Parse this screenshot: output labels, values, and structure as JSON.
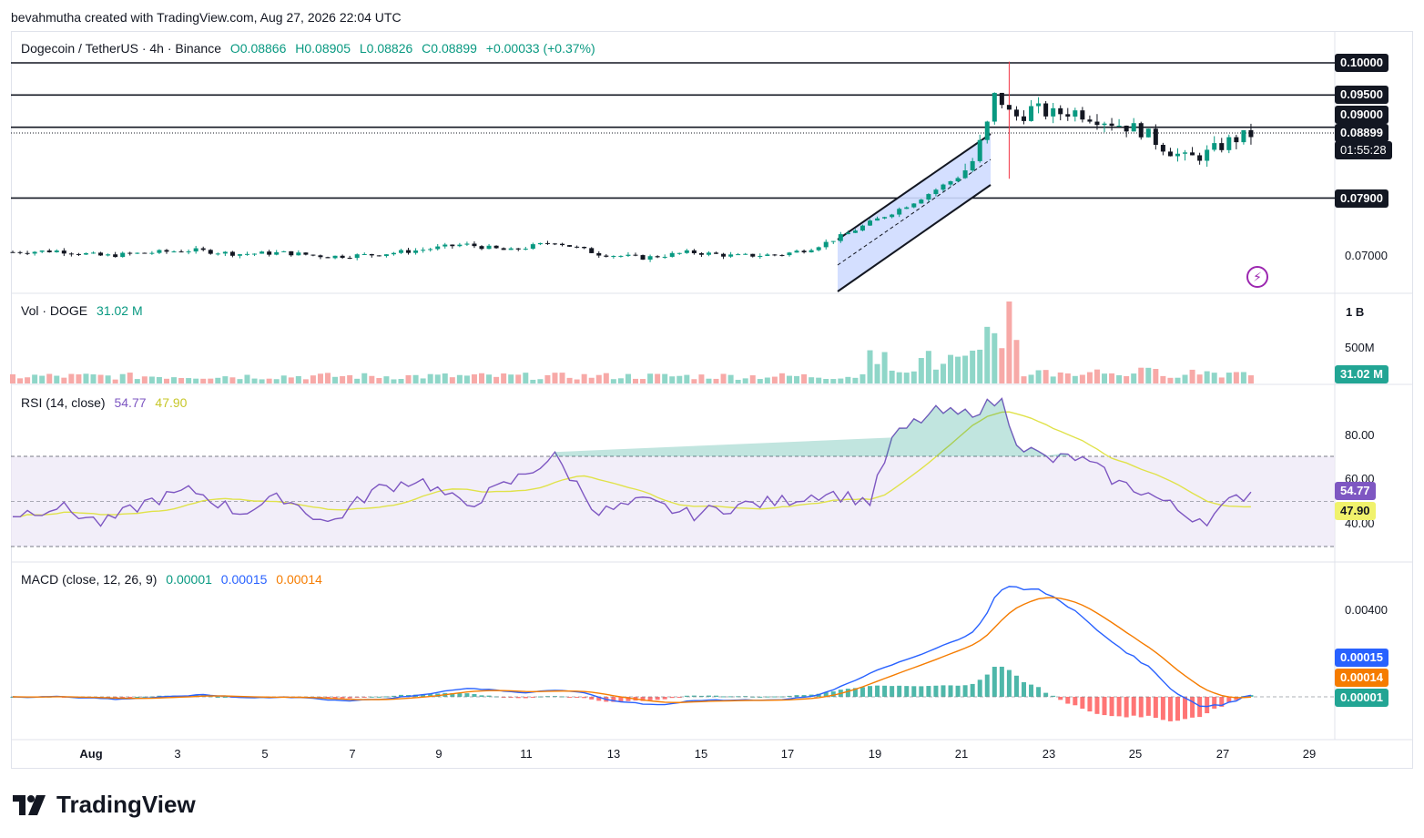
{
  "header": {
    "text": "bevahmutha created with TradingView.com, Aug 27, 2026 22:04 UTC"
  },
  "symbol": {
    "title": "Dogecoin / TetherUS · 4h · Binance",
    "open": "O0.08866",
    "high": "H0.08905",
    "low": "L0.08826",
    "close": "C0.08899",
    "change": "+0.00033 (+0.37%)"
  },
  "price_axis": {
    "levels": [
      "0.10000",
      "0.09500",
      "0.09000",
      "0.07900"
    ],
    "plain": [
      "0.07000"
    ],
    "current": "0.08899",
    "countdown": "01:55:28"
  },
  "volume": {
    "label": "Vol · DOGE",
    "value": "31.02 M",
    "axis": [
      "1 B",
      "500M"
    ],
    "tag": "31.02 M"
  },
  "rsi": {
    "label": "RSI (14, close)",
    "value": "54.77",
    "ma": "47.90",
    "axis": [
      "80.00",
      "60.00",
      "40.00"
    ],
    "tag_rsi": "54.77",
    "tag_ma": "47.90"
  },
  "macd": {
    "label": "MACD (close, 12, 26, 9)",
    "hist": "0.00001",
    "macd": "0.00015",
    "signal": "0.00014",
    "axis": [
      "0.00400"
    ],
    "tag_macd": "0.00015",
    "tag_signal": "0.00014",
    "tag_hist": "0.00001"
  },
  "x_axis": [
    "Aug",
    "3",
    "5",
    "7",
    "9",
    "11",
    "13",
    "15",
    "17",
    "19",
    "21",
    "23",
    "25",
    "27",
    "29"
  ],
  "footer": {
    "brand": "TradingView"
  },
  "colors": {
    "up": "#089981",
    "down": "#f23645",
    "rsi": "#7e57c2",
    "rsi_ma": "#e0e24a",
    "macd": "#2962ff",
    "signal": "#f57c00",
    "channel": "#cfdcff"
  },
  "chart_data": {
    "type": "candlestick",
    "title": "Dogecoin / TetherUS · 4h · Binance",
    "x_ticks": [
      "Aug",
      "3",
      "5",
      "7",
      "9",
      "11",
      "13",
      "15",
      "17",
      "19",
      "21",
      "23",
      "25",
      "27",
      "29"
    ],
    "horizontal_levels": [
      0.1,
      0.095,
      0.09,
      0.079
    ],
    "ylim": [
      0.063,
      0.104
    ],
    "price_path": [
      [
        0,
        0.0706
      ],
      [
        1,
        0.0708
      ],
      [
        2,
        0.07
      ],
      [
        3,
        0.0705
      ],
      [
        4,
        0.0709
      ],
      [
        5,
        0.0703
      ],
      [
        6,
        0.0705
      ],
      [
        7,
        0.0699
      ],
      [
        8,
        0.0702
      ],
      [
        9,
        0.0709
      ],
      [
        10,
        0.0718
      ],
      [
        11,
        0.0708
      ],
      [
        12,
        0.0722
      ],
      [
        13,
        0.0703
      ],
      [
        14,
        0.0697
      ],
      [
        15,
        0.0706
      ],
      [
        16,
        0.07
      ],
      [
        17,
        0.0702
      ],
      [
        17.6,
        0.071
      ],
      [
        18,
        0.072
      ],
      [
        18.5,
        0.0735
      ],
      [
        19,
        0.0752
      ],
      [
        19.5,
        0.0768
      ],
      [
        20,
        0.0785
      ],
      [
        20.5,
        0.0805
      ],
      [
        21,
        0.0825
      ],
      [
        21.3,
        0.085
      ],
      [
        21.6,
        0.0905
      ],
      [
        21.8,
        0.096
      ],
      [
        22,
        0.0925
      ],
      [
        22.3,
        0.0915
      ],
      [
        22.6,
        0.093
      ],
      [
        23,
        0.092
      ],
      [
        23.5,
        0.0925
      ],
      [
        24,
        0.0915
      ],
      [
        24.5,
        0.0905
      ],
      [
        25,
        0.0895
      ],
      [
        25.5,
        0.087
      ],
      [
        26,
        0.085
      ],
      [
        26.5,
        0.086
      ],
      [
        27,
        0.088
      ],
      [
        27.5,
        0.089
      ]
    ],
    "volume": {
      "axis_ticks": [
        "1 B",
        "500M"
      ],
      "last": "31.02 M"
    },
    "rsi": {
      "upper": 70,
      "middle": 50,
      "lower": 30,
      "last": 54.77,
      "ma_last": 47.9,
      "path": [
        [
          0,
          44
        ],
        [
          1,
          48
        ],
        [
          2,
          40
        ],
        [
          3,
          50
        ],
        [
          4,
          55
        ],
        [
          5,
          45
        ],
        [
          6,
          52
        ],
        [
          7,
          40
        ],
        [
          8,
          55
        ],
        [
          9,
          60
        ],
        [
          10,
          48
        ],
        [
          11,
          58
        ],
        [
          12,
          70
        ],
        [
          13,
          45
        ],
        [
          14,
          50
        ],
        [
          15,
          44
        ],
        [
          16,
          48
        ],
        [
          17,
          50
        ],
        [
          18,
          54
        ],
        [
          19,
          50
        ],
        [
          19.5,
          78
        ],
        [
          20,
          85
        ],
        [
          20.5,
          90
        ],
        [
          21,
          88
        ],
        [
          21.5,
          92
        ],
        [
          21.9,
          95
        ],
        [
          22.3,
          75
        ],
        [
          23,
          68
        ],
        [
          23.5,
          70
        ],
        [
          24,
          65
        ],
        [
          24.5,
          58
        ],
        [
          25,
          55
        ],
        [
          25.5,
          50
        ],
        [
          26,
          44
        ],
        [
          26.5,
          42
        ],
        [
          27,
          50
        ],
        [
          27.5,
          55
        ]
      ]
    },
    "macd": {
      "macd_last": 0.00015,
      "signal_last": 0.00014,
      "hist_last": 1e-05
    }
  }
}
